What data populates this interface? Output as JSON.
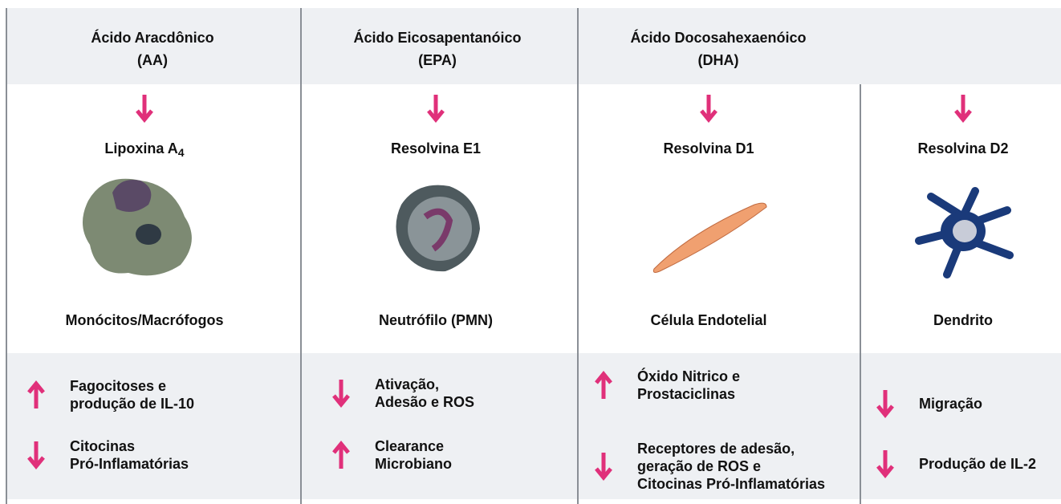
{
  "header": [
    {
      "name": "Ácido Aracdônico",
      "abbr": "(AA)"
    },
    {
      "name": "Ácido Eicosapentanóico",
      "abbr": "(EPA)"
    },
    {
      "name": "Ácido Docosahexaenóico",
      "abbr": "(DHA)"
    }
  ],
  "columns": [
    {
      "mediator": "Lipoxina A",
      "mediator_sub": "4",
      "cell": "Monócitos/Macrófogos",
      "effects": [
        {
          "direction": "up",
          "lines": [
            "Fagocitoses e",
            "produção de IL-10"
          ]
        },
        {
          "direction": "down",
          "lines": [
            "Citocinas",
            "Pró-Inflamatórias"
          ]
        }
      ]
    },
    {
      "mediator": "Resolvina E1",
      "cell": "Neutrófilo (PMN)",
      "effects": [
        {
          "direction": "down",
          "lines": [
            "Ativação,",
            "Adesão e ROS"
          ]
        },
        {
          "direction": "up",
          "lines": [
            "Clearance",
            "Microbiano"
          ]
        }
      ]
    },
    {
      "mediator": "Resolvina D1",
      "cell": "Célula Endotelial",
      "effects": [
        {
          "direction": "up",
          "lines": [
            "Óxido Nitrico e",
            "Prostaciclinas"
          ]
        },
        {
          "direction": "down",
          "lines": [
            "Receptores de adesão,",
            "geração de ROS e",
            "Citocinas Pró-Inflamatórias"
          ]
        }
      ]
    },
    {
      "mediator": "Resolvina D2",
      "cell": "Dendrito",
      "effects": [
        {
          "direction": "down",
          "lines": [
            "Migração"
          ]
        },
        {
          "direction": "down",
          "lines": [
            "Produção de IL-2"
          ]
        }
      ]
    }
  ]
}
